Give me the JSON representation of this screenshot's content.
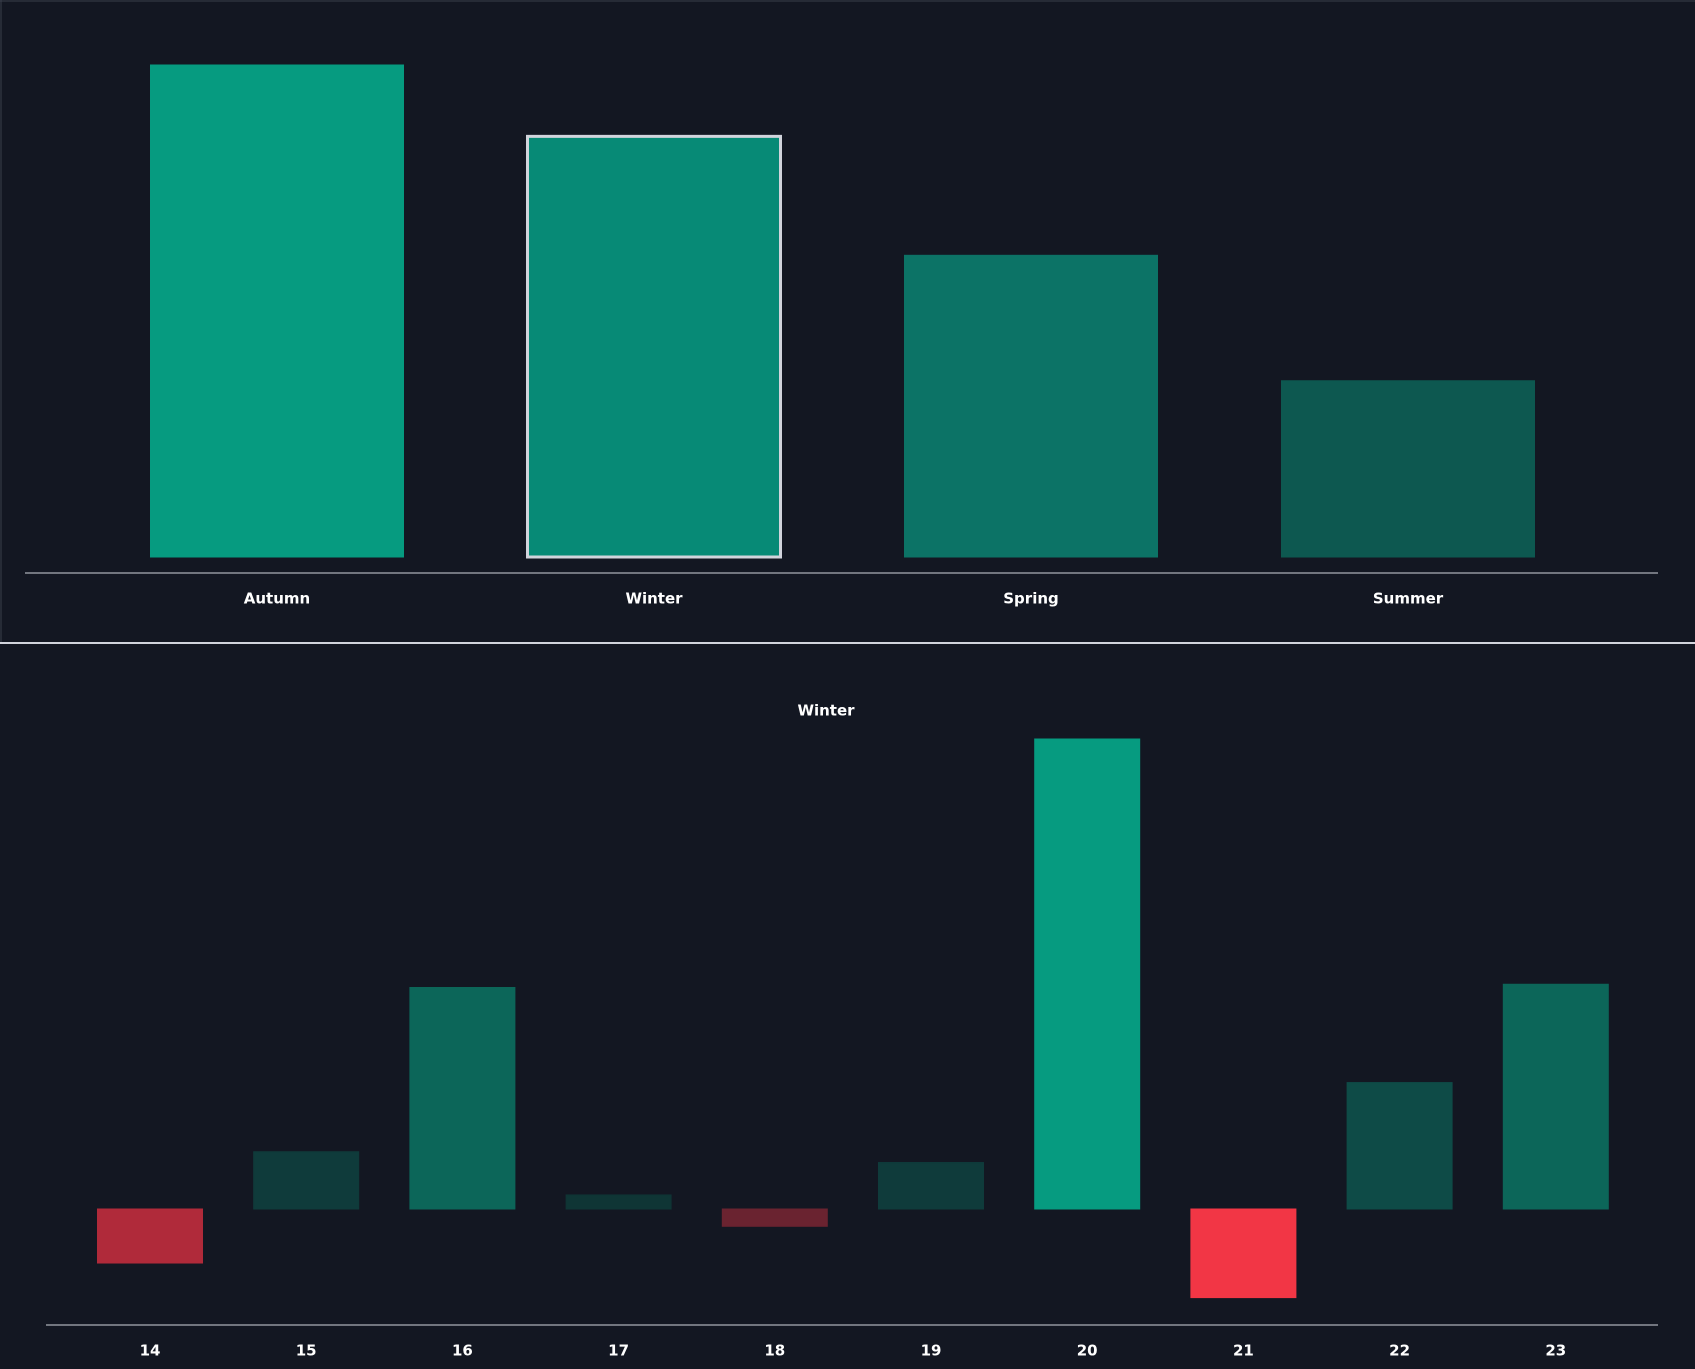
{
  "chart_data": [
    {
      "type": "bar",
      "categories": [
        "Autumn",
        "Winter",
        "Spring",
        "Summer"
      ],
      "values": [
        455,
        389,
        279,
        163
      ],
      "colors": [
        "#069b80",
        "#078a76",
        "#0c7366",
        "#0d5850"
      ],
      "selected": 1
    },
    {
      "type": "bar",
      "title": "Winter",
      "categories": [
        "14",
        "15",
        "16",
        "17",
        "18",
        "19",
        "20",
        "21",
        "22",
        "23"
      ],
      "values": [
        -50,
        53,
        205,
        13,
        -16,
        43,
        435,
        -82,
        117,
        208
      ],
      "colors": [
        "#b02a3a",
        "#0f3b3b",
        "#0c6659",
        "#0f3535",
        "#6a2330",
        "#0f3b3b",
        "#069b80",
        "#f23645",
        "#0e4b47",
        "#0c6659"
      ]
    }
  ]
}
